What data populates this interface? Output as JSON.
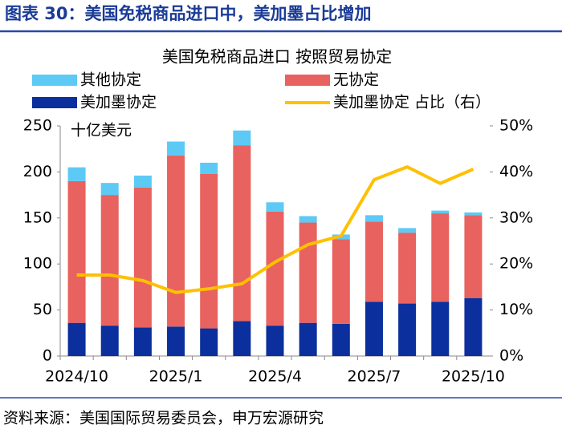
{
  "header": "图表 30：美国免税商品进口中，美加墨占比增加",
  "source": "资料来源：美国国际贸易委员会，申万宏源研究",
  "chart_data": {
    "type": "bar",
    "stacked": true,
    "title": "美国免税商品进口 按照贸易协定",
    "unit": "十亿美元",
    "categories": [
      "2024/10",
      null,
      null,
      "2025/1",
      null,
      null,
      "2025/4",
      null,
      null,
      "2025/7",
      null,
      null,
      "2025/10"
    ],
    "series": [
      {
        "name": "美加墨协定",
        "color": "#0b2f9c",
        "values": [
          36,
          33,
          31,
          32,
          30,
          38,
          33,
          36,
          35,
          59,
          57,
          59,
          63
        ]
      },
      {
        "name": "无协定",
        "color": "#e8625f",
        "values": [
          154,
          142,
          152,
          186,
          168,
          191,
          124,
          109,
          92,
          87,
          77,
          96,
          90
        ]
      },
      {
        "name": "其他协定",
        "color": "#5ccaf5",
        "values": [
          15,
          13,
          13,
          15,
          12,
          16,
          10,
          7,
          5,
          7,
          5,
          3,
          3
        ]
      },
      {
        "name": "美加墨协定 占比（右）",
        "color": "#ffc000",
        "type": "line",
        "axis": "y2",
        "values": [
          17.6,
          17.6,
          16.4,
          13.8,
          14.6,
          15.7,
          20.4,
          24.2,
          26.1,
          38.3,
          41.1,
          37.5,
          40.6
        ]
      }
    ],
    "ylim": [
      0,
      250
    ],
    "yticks": [
      0,
      50,
      100,
      150,
      200,
      250
    ],
    "y2lim": [
      0,
      50
    ],
    "y2ticks": [
      {
        "value": 0,
        "label": "0%"
      },
      {
        "value": 10,
        "label": "10%"
      },
      {
        "value": 20,
        "label": "20%"
      },
      {
        "value": 30,
        "label": "30%"
      },
      {
        "value": 40,
        "label": "40%"
      },
      {
        "value": 50,
        "label": "50%"
      }
    ],
    "grid": false
  }
}
